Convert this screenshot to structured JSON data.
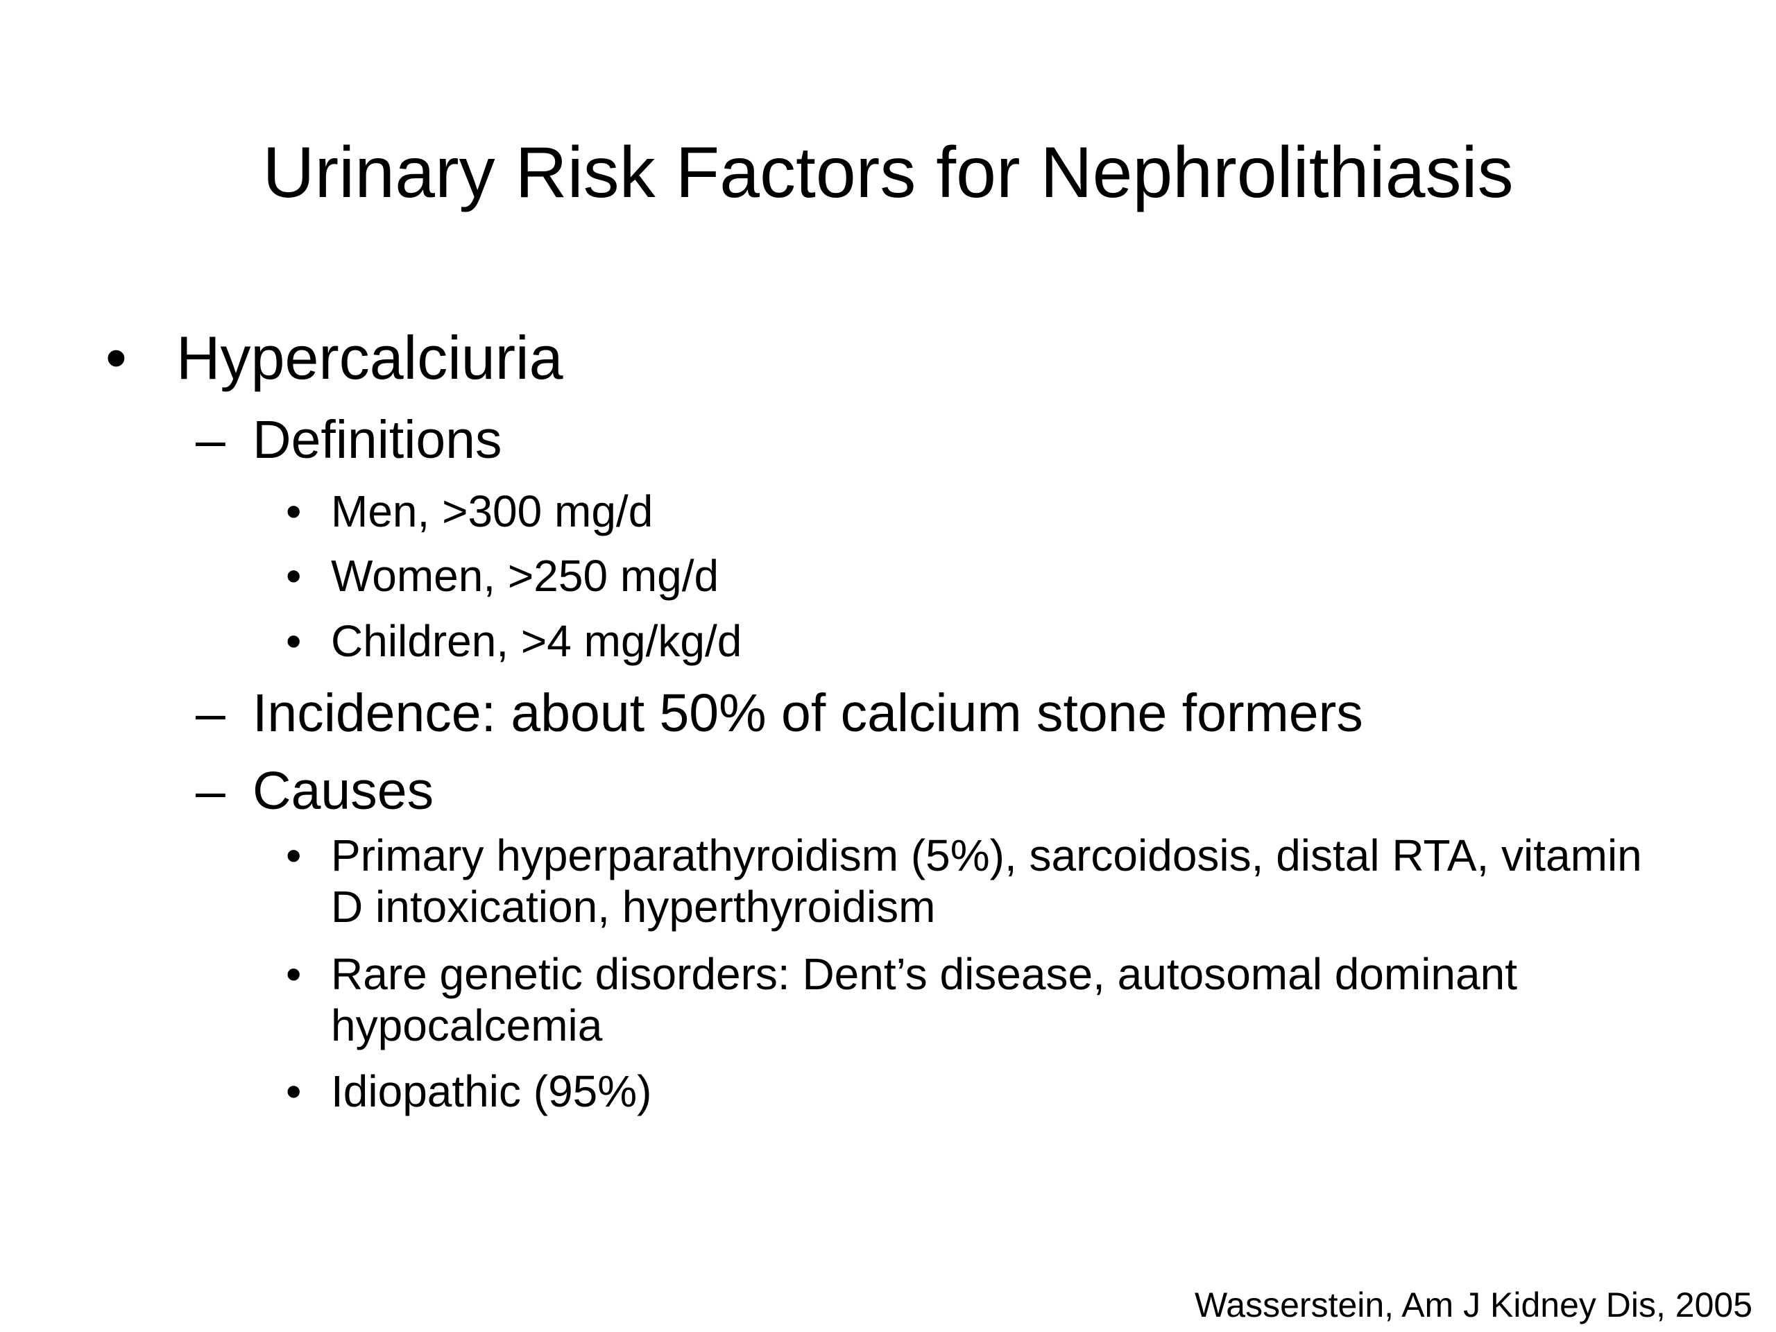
{
  "slide": {
    "title": "Urinary Risk Factors for Nephrolithiasis",
    "bullet_glyph": "•",
    "dash_glyph": "–",
    "level1": "Hypercalciuria",
    "definitions": {
      "label": "Definitions",
      "items": [
        "Men, >300 mg/d",
        "Women, >250 mg/d",
        "Children, >4 mg/kg/d"
      ]
    },
    "incidence": "Incidence: about 50% of calcium stone formers",
    "causes": {
      "label": "Causes",
      "items": [
        "Primary hyperparathyroidism (5%), sarcoidosis, distal RTA, vitamin D intoxication, hyperthyroidism",
        "Rare genetic disorders: Dent’s disease, autosomal dominant hypocalcemia",
        "Idiopathic (95%)"
      ]
    },
    "citation": "Wasserstein, Am J Kidney Dis, 2005"
  }
}
